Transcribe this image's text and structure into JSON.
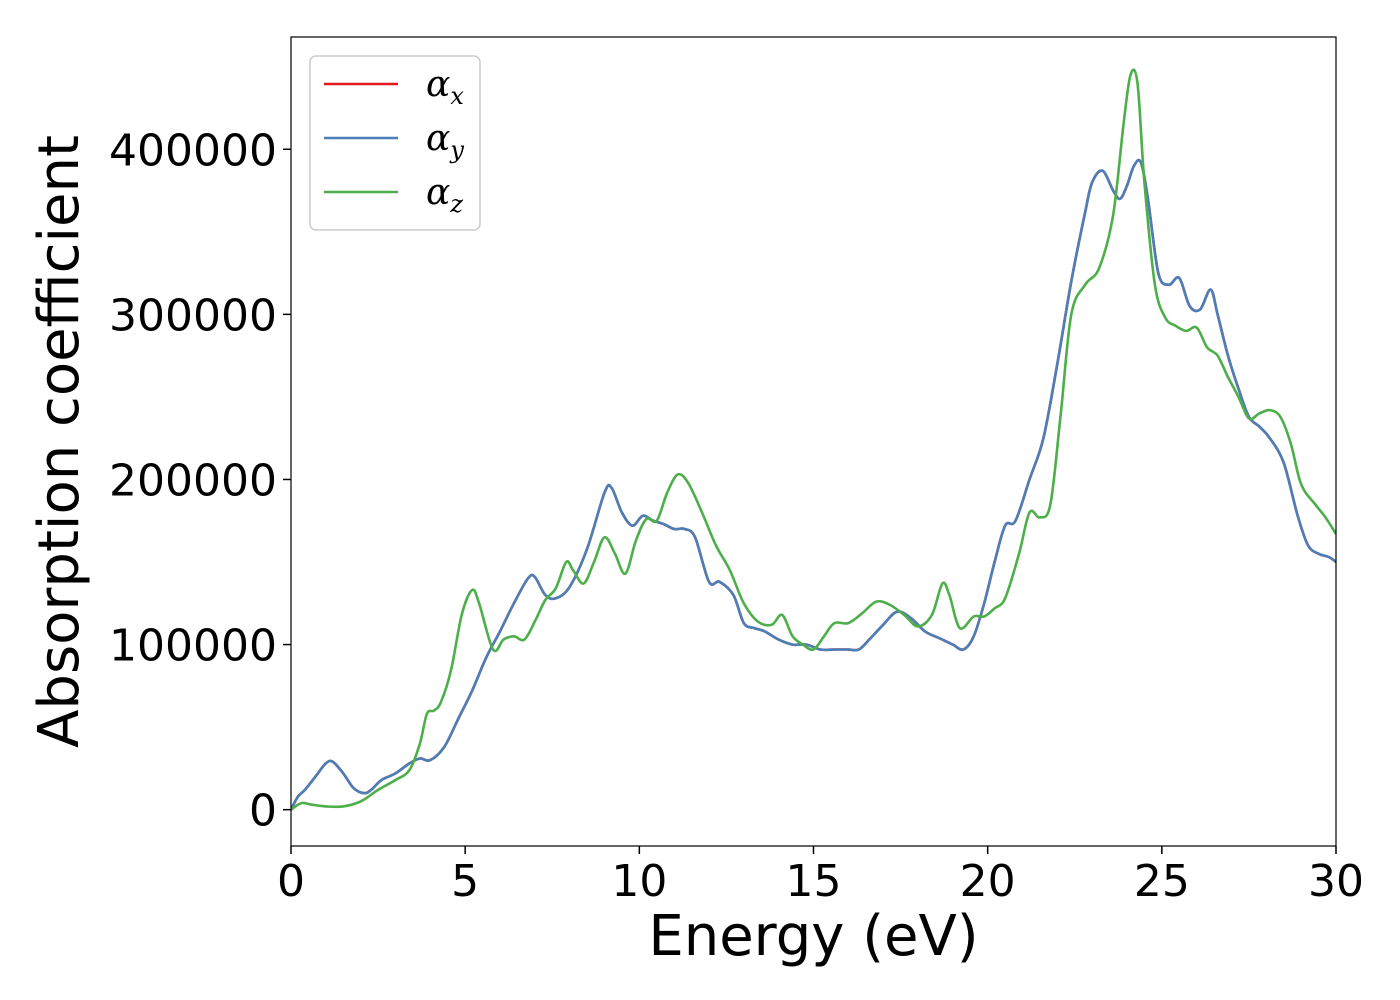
{
  "chart_data": {
    "type": "line",
    "xlabel": "Energy (eV)",
    "ylabel": "Absorption coefficient",
    "xlim": [
      0,
      30
    ],
    "ylim": [
      -22000,
      468000
    ],
    "xticks": [
      0,
      5,
      10,
      15,
      20,
      25,
      30
    ],
    "yticks": [
      0,
      100000,
      200000,
      300000,
      400000
    ],
    "grid": false,
    "legend_position": "top-left",
    "series": [
      {
        "name": "α_x",
        "symbol": "α",
        "sub": "x",
        "color": "#e41a1c",
        "x": [
          0,
          0.2,
          0.4,
          0.7,
          1.0,
          1.2,
          1.5,
          1.8,
          2.1,
          2.3,
          2.6,
          3.0,
          3.4,
          3.7,
          4.0,
          4.4,
          4.8,
          5.2,
          5.6,
          6.0,
          6.4,
          6.8,
          7.0,
          7.3,
          7.6,
          8.0,
          8.5,
          9.0,
          9.2,
          9.5,
          9.8,
          10.1,
          10.4,
          10.7,
          11.0,
          11.3,
          11.6,
          12.0,
          12.3,
          12.7,
          13.0,
          13.3,
          13.6,
          14.0,
          14.4,
          14.8,
          15.2,
          15.6,
          16.0,
          16.3,
          16.6,
          17.0,
          17.4,
          17.8,
          18.2,
          18.6,
          19.0,
          19.3,
          19.6,
          19.9,
          20.2,
          20.5,
          20.8,
          21.2,
          21.6,
          22.0,
          22.4,
          22.8,
          23.0,
          23.3,
          23.6,
          23.8,
          24.0,
          24.2,
          24.4,
          24.6,
          24.9,
          25.2,
          25.5,
          25.8,
          26.1,
          26.4,
          26.6,
          26.9,
          27.2,
          27.5,
          27.8,
          28.1,
          28.5,
          28.9,
          29.2,
          29.5,
          29.8,
          30.0
        ],
        "y": [
          0,
          8000,
          12000,
          20000,
          28000,
          29000,
          22000,
          13000,
          10000,
          12000,
          18000,
          22000,
          28000,
          31000,
          30000,
          38000,
          55000,
          72000,
          92000,
          108000,
          125000,
          140000,
          141000,
          130000,
          128000,
          135000,
          158000,
          192000,
          195000,
          180000,
          172000,
          178000,
          175000,
          173000,
          170000,
          170000,
          165000,
          138000,
          138000,
          130000,
          113000,
          110000,
          108000,
          103000,
          100000,
          100000,
          97000,
          97000,
          97000,
          97000,
          103000,
          112000,
          120000,
          116000,
          108000,
          104000,
          100000,
          97000,
          105000,
          125000,
          150000,
          172000,
          175000,
          200000,
          225000,
          270000,
          320000,
          362000,
          380000,
          387000,
          375000,
          370000,
          378000,
          390000,
          392000,
          370000,
          325000,
          318000,
          322000,
          305000,
          303000,
          315000,
          300000,
          275000,
          255000,
          238000,
          232000,
          225000,
          210000,
          178000,
          160000,
          155000,
          153000,
          150000
        ]
      },
      {
        "name": "α_y",
        "symbol": "α",
        "sub": "y",
        "color": "#4a7fb8",
        "x": [
          0,
          0.2,
          0.4,
          0.7,
          1.0,
          1.2,
          1.5,
          1.8,
          2.1,
          2.3,
          2.6,
          3.0,
          3.4,
          3.7,
          4.0,
          4.4,
          4.8,
          5.2,
          5.6,
          6.0,
          6.4,
          6.8,
          7.0,
          7.3,
          7.6,
          8.0,
          8.5,
          9.0,
          9.2,
          9.5,
          9.8,
          10.1,
          10.4,
          10.7,
          11.0,
          11.3,
          11.6,
          12.0,
          12.3,
          12.7,
          13.0,
          13.3,
          13.6,
          14.0,
          14.4,
          14.8,
          15.2,
          15.6,
          16.0,
          16.3,
          16.6,
          17.0,
          17.4,
          17.8,
          18.2,
          18.6,
          19.0,
          19.3,
          19.6,
          19.9,
          20.2,
          20.5,
          20.8,
          21.2,
          21.6,
          22.0,
          22.4,
          22.8,
          23.0,
          23.3,
          23.6,
          23.8,
          24.0,
          24.2,
          24.4,
          24.6,
          24.9,
          25.2,
          25.5,
          25.8,
          26.1,
          26.4,
          26.6,
          26.9,
          27.2,
          27.5,
          27.8,
          28.1,
          28.5,
          28.9,
          29.2,
          29.5,
          29.8,
          30.0
        ],
        "y": [
          0,
          8000,
          12000,
          20000,
          28000,
          29000,
          22000,
          13000,
          10000,
          12000,
          18000,
          22000,
          28000,
          31000,
          30000,
          38000,
          55000,
          72000,
          92000,
          108000,
          125000,
          140000,
          141000,
          130000,
          128000,
          135000,
          158000,
          192000,
          195000,
          180000,
          172000,
          178000,
          175000,
          173000,
          170000,
          170000,
          165000,
          138000,
          138000,
          130000,
          113000,
          110000,
          108000,
          103000,
          100000,
          100000,
          97000,
          97000,
          97000,
          97000,
          103000,
          112000,
          120000,
          116000,
          108000,
          104000,
          100000,
          97000,
          105000,
          125000,
          150000,
          172000,
          175000,
          200000,
          225000,
          270000,
          320000,
          362000,
          380000,
          387000,
          375000,
          370000,
          378000,
          390000,
          392000,
          370000,
          325000,
          318000,
          322000,
          305000,
          303000,
          315000,
          300000,
          275000,
          255000,
          238000,
          232000,
          225000,
          210000,
          178000,
          160000,
          155000,
          153000,
          150000
        ]
      },
      {
        "name": "α_z",
        "symbol": "α",
        "sub": "z",
        "color": "#4daf4a",
        "x": [
          0,
          0.3,
          0.6,
          1.0,
          1.5,
          2.0,
          2.5,
          3.0,
          3.4,
          3.7,
          3.9,
          4.1,
          4.3,
          4.6,
          4.9,
          5.2,
          5.4,
          5.8,
          6.1,
          6.4,
          6.7,
          7.0,
          7.3,
          7.6,
          7.9,
          8.1,
          8.4,
          8.7,
          9.0,
          9.3,
          9.6,
          9.9,
          10.2,
          10.5,
          10.8,
          11.1,
          11.4,
          11.8,
          12.2,
          12.6,
          13.0,
          13.4,
          13.8,
          14.1,
          14.4,
          14.7,
          15.0,
          15.3,
          15.6,
          16.0,
          16.4,
          16.8,
          17.2,
          17.6,
          18.0,
          18.4,
          18.7,
          18.9,
          19.2,
          19.6,
          19.9,
          20.2,
          20.5,
          20.9,
          21.2,
          21.5,
          21.8,
          22.1,
          22.4,
          22.8,
          23.2,
          23.6,
          23.9,
          24.1,
          24.3,
          24.5,
          24.8,
          25.1,
          25.4,
          25.7,
          26.0,
          26.3,
          26.6,
          26.9,
          27.2,
          27.5,
          27.8,
          28.1,
          28.4,
          28.7,
          29.0,
          29.4,
          29.7,
          30.0
        ],
        "y": [
          0,
          4000,
          3000,
          2000,
          2000,
          5000,
          12000,
          18000,
          24000,
          40000,
          58000,
          60000,
          65000,
          85000,
          118000,
          133000,
          125000,
          97000,
          103000,
          105000,
          103000,
          114000,
          127000,
          134000,
          150000,
          145000,
          137000,
          150000,
          165000,
          155000,
          143000,
          163000,
          176000,
          175000,
          192000,
          203000,
          198000,
          180000,
          160000,
          145000,
          125000,
          114000,
          112000,
          118000,
          105000,
          100000,
          97000,
          105000,
          113000,
          113000,
          119000,
          126000,
          124000,
          118000,
          111000,
          118000,
          137000,
          130000,
          110000,
          117000,
          117000,
          122000,
          128000,
          155000,
          180000,
          177000,
          185000,
          240000,
          300000,
          318000,
          328000,
          360000,
          415000,
          445000,
          440000,
          380000,
          318000,
          298000,
          293000,
          290000,
          292000,
          280000,
          275000,
          262000,
          250000,
          237000,
          240000,
          242000,
          238000,
          222000,
          197000,
          185000,
          177000,
          167000
        ]
      }
    ]
  }
}
